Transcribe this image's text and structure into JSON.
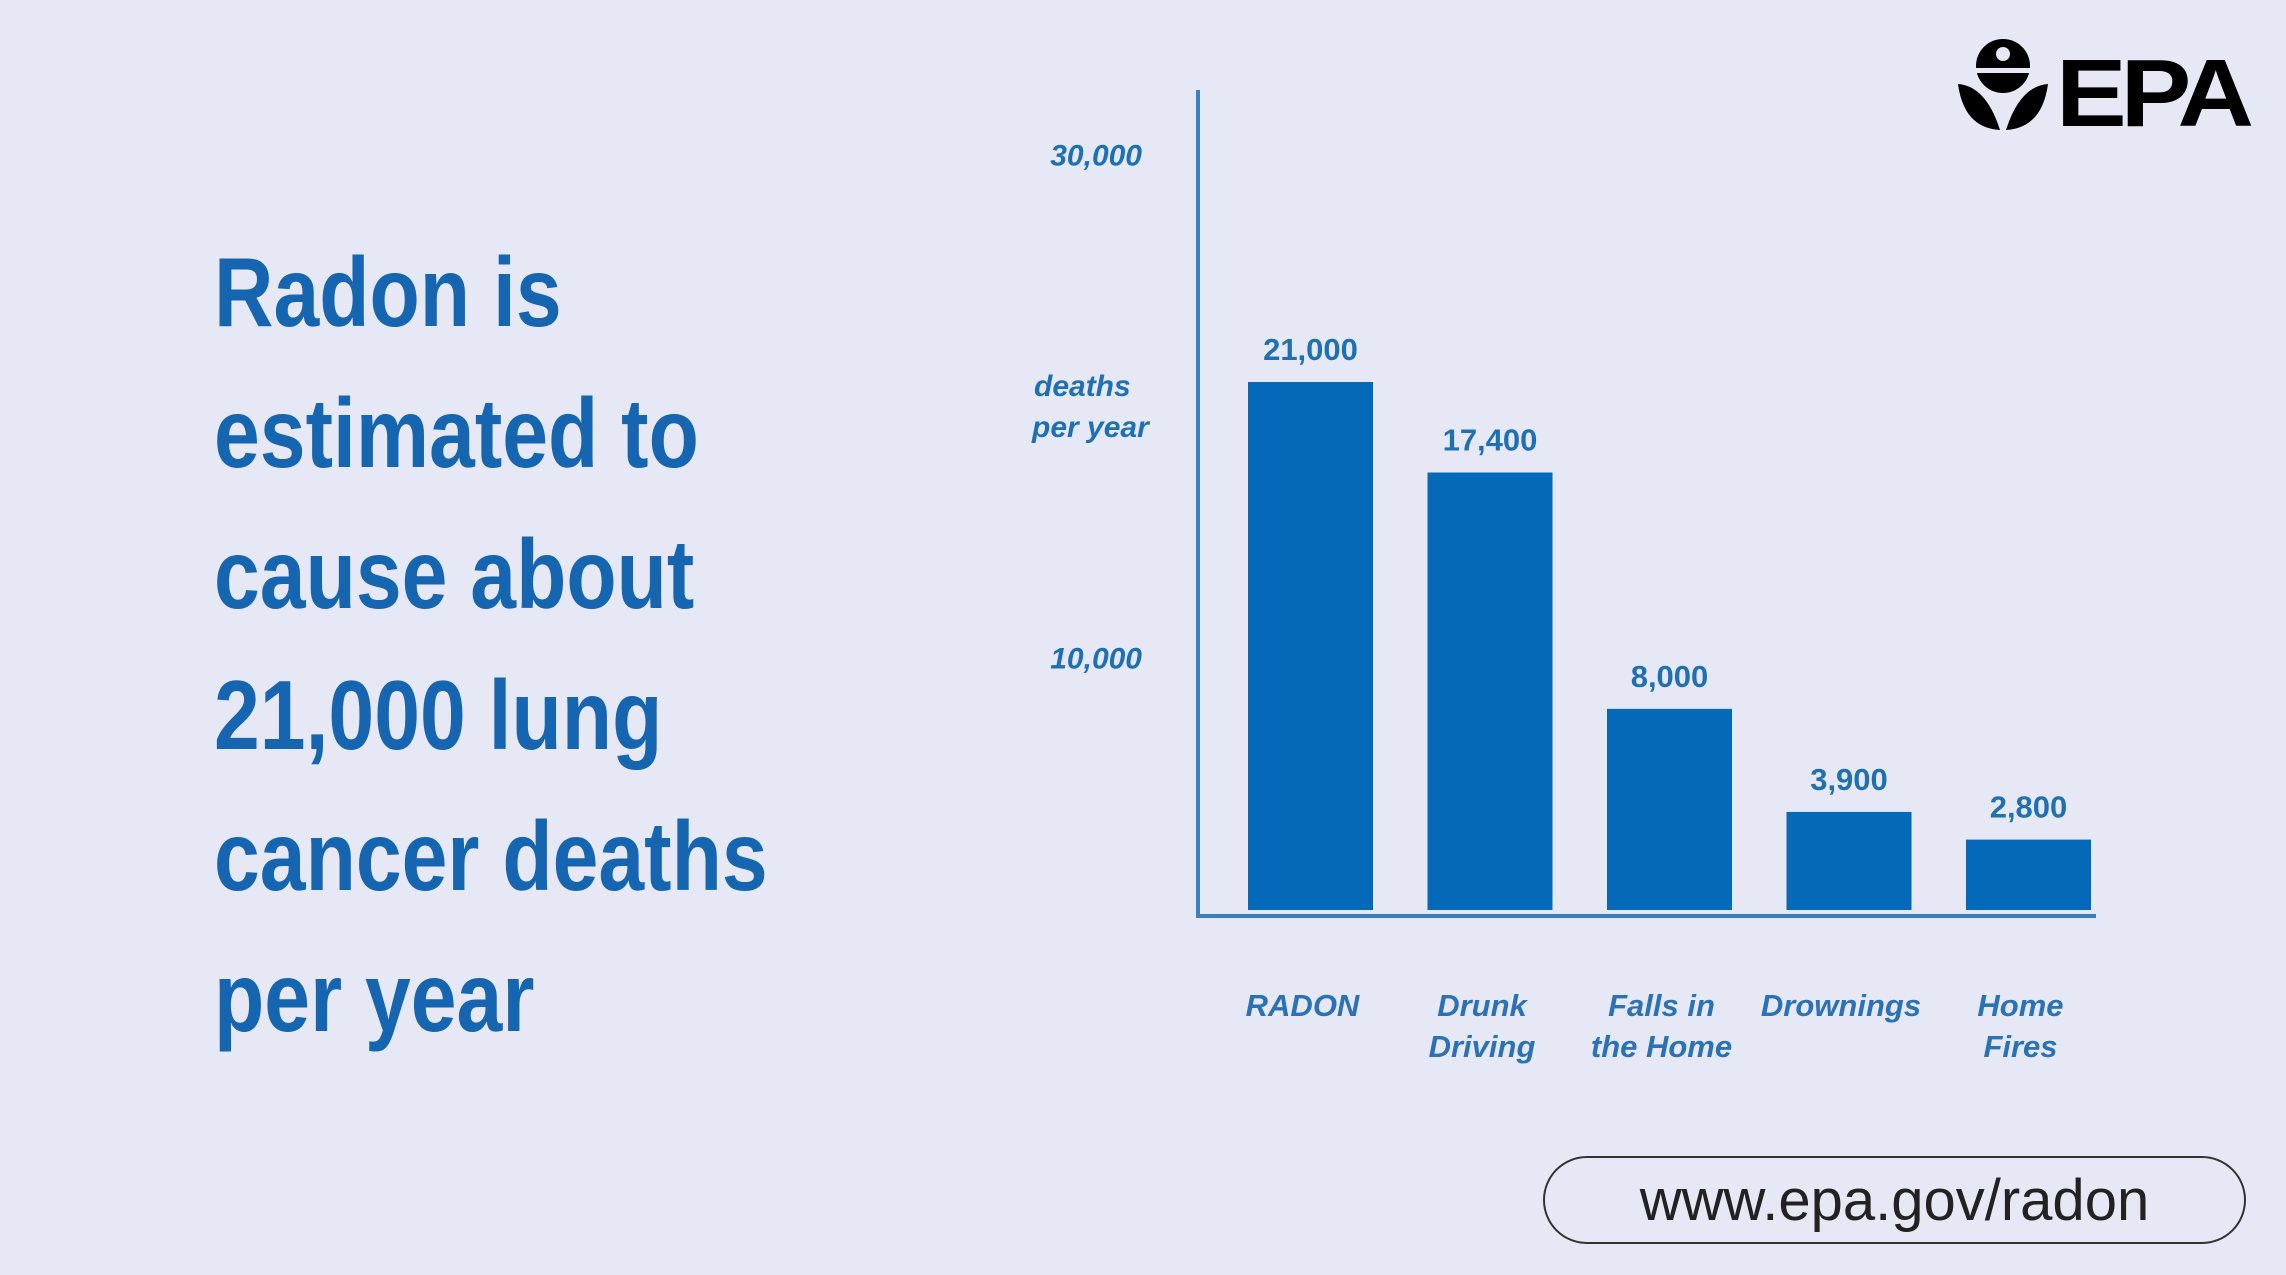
{
  "headline": [
    "Radon is",
    "estimated to",
    "cause about",
    "21,000 lung",
    "cancer deaths",
    "per year"
  ],
  "logo": {
    "text": "EPA",
    "icon": "epa-flower-logo"
  },
  "url": "www.epa.gov/radon",
  "chart_data": {
    "type": "bar",
    "categories": [
      [
        "RADON"
      ],
      [
        "Drunk",
        "Driving"
      ],
      [
        "Falls in",
        "the Home"
      ],
      [
        "Drownings"
      ],
      [
        "Home",
        "Fires"
      ]
    ],
    "values": [
      21000,
      17400,
      8000,
      3900,
      2800
    ],
    "value_labels": [
      "21,000",
      "17,400",
      "8,000",
      "3,900",
      "2,800"
    ],
    "yticks": [
      {
        "value": 10000,
        "label": "10,000"
      },
      {
        "value": 30000,
        "label": "30,000"
      }
    ],
    "ylabel": [
      "deaths",
      "per year"
    ],
    "ylim": [
      0,
      30000
    ],
    "grid": false,
    "colors": {
      "bar": "#0569b9",
      "text": "#1f6fb3",
      "headline": "#1565b0",
      "background": "#e6e9f5"
    }
  }
}
